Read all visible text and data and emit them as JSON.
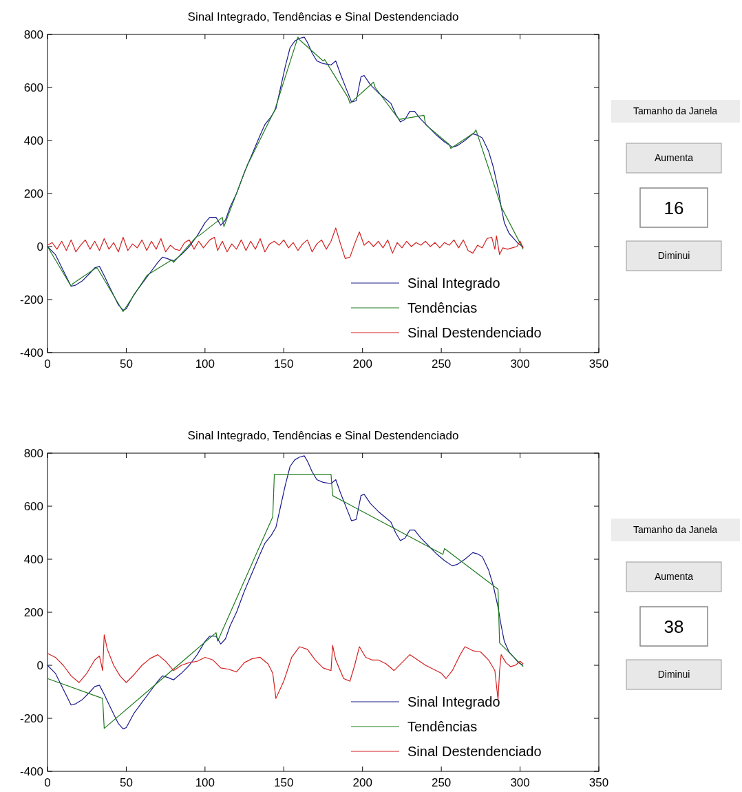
{
  "chart_data": [
    {
      "type": "line",
      "title": "Sinal Integrado, Tendências e Sinal Destendenciado",
      "xlim": [
        0,
        350
      ],
      "ylim": [
        -400,
        800
      ],
      "xticks": [
        0,
        50,
        100,
        150,
        200,
        250,
        300,
        350
      ],
      "yticks": [
        -400,
        -200,
        0,
        200,
        400,
        600,
        800
      ],
      "legend": "bottom right",
      "annotations": [
        "Tamanho da Janela",
        "Aumenta",
        "16",
        "Diminui"
      ],
      "series": [
        {
          "name": "Sinal Integrado",
          "color": "#1a1a8c",
          "x": [
            0,
            5,
            10,
            15,
            18,
            22,
            27,
            30,
            33,
            36,
            40,
            45,
            48,
            50,
            55,
            60,
            65,
            70,
            73,
            76,
            80,
            85,
            90,
            95,
            100,
            103,
            107,
            110,
            113,
            116,
            120,
            125,
            130,
            135,
            138,
            142,
            145,
            148,
            151,
            154,
            157,
            160,
            163,
            165,
            168,
            171,
            175,
            180,
            183,
            186,
            190,
            193,
            196,
            199,
            201,
            205,
            210,
            215,
            218,
            221,
            224,
            227,
            230,
            233,
            237,
            242,
            247,
            252,
            257,
            260,
            265,
            270,
            273,
            276,
            280,
            283,
            286,
            288,
            290,
            293,
            296,
            299,
            302
          ],
          "values": [
            0,
            -30,
            -90,
            -150,
            -145,
            -130,
            -100,
            -80,
            -75,
            -110,
            -160,
            -220,
            -240,
            -235,
            -180,
            -140,
            -100,
            -60,
            -40,
            -45,
            -55,
            -30,
            0,
            40,
            90,
            110,
            110,
            80,
            100,
            150,
            200,
            280,
            350,
            420,
            460,
            490,
            520,
            600,
            680,
            750,
            775,
            785,
            790,
            770,
            730,
            700,
            690,
            685,
            700,
            650,
            590,
            545,
            550,
            640,
            645,
            610,
            580,
            555,
            540,
            500,
            470,
            480,
            510,
            510,
            480,
            450,
            420,
            395,
            375,
            380,
            400,
            425,
            420,
            410,
            360,
            300,
            220,
            150,
            90,
            50,
            30,
            10,
            0
          ]
        },
        {
          "name": "Tendências",
          "color": "#1e7a1e",
          "x": [
            0,
            15,
            16,
            31,
            32,
            47,
            48,
            63,
            64,
            79,
            80,
            95,
            96,
            111,
            112,
            127,
            128,
            143,
            144,
            159,
            160,
            175,
            176,
            191,
            192,
            207,
            208,
            223,
            224,
            239,
            240,
            255,
            256,
            271,
            272,
            287,
            288,
            302
          ],
          "values": [
            0,
            -150,
            -140,
            -80,
            -85,
            -235,
            -245,
            -110,
            -105,
            -50,
            -60,
            40,
            40,
            110,
            75,
            310,
            320,
            500,
            510,
            790,
            780,
            700,
            705,
            560,
            540,
            620,
            600,
            480,
            480,
            495,
            460,
            385,
            370,
            430,
            440,
            170,
            150,
            -10
          ]
        },
        {
          "name": "Sinal Destendenciado",
          "color": "#d42020",
          "x": [
            0,
            3,
            6,
            9,
            12,
            15,
            18,
            21,
            24,
            27,
            30,
            33,
            36,
            39,
            42,
            45,
            48,
            51,
            54,
            57,
            60,
            63,
            66,
            69,
            72,
            75,
            78,
            81,
            84,
            87,
            90,
            93,
            96,
            99,
            103,
            106,
            108,
            111,
            114,
            117,
            120,
            123,
            126,
            129,
            132,
            135,
            138,
            141,
            144,
            147,
            150,
            153,
            156,
            159,
            162,
            165,
            168,
            171,
            174,
            177,
            180,
            183,
            186,
            189,
            192,
            195,
            198,
            201,
            204,
            207,
            210,
            213,
            216,
            219,
            222,
            225,
            228,
            231,
            234,
            237,
            240,
            243,
            246,
            249,
            252,
            255,
            258,
            261,
            264,
            267,
            270,
            273,
            276,
            279,
            282,
            284,
            285,
            287,
            289,
            292,
            295,
            298,
            300,
            302
          ],
          "values": [
            5,
            15,
            -10,
            20,
            -15,
            25,
            -20,
            5,
            25,
            -10,
            20,
            -15,
            30,
            -10,
            15,
            -20,
            35,
            -15,
            10,
            -5,
            25,
            -15,
            20,
            -10,
            30,
            -20,
            5,
            -10,
            -15,
            15,
            25,
            -10,
            20,
            -5,
            25,
            35,
            -15,
            20,
            -20,
            10,
            -10,
            25,
            -15,
            20,
            -10,
            30,
            -20,
            10,
            20,
            5,
            25,
            -5,
            15,
            -15,
            10,
            25,
            -20,
            10,
            25,
            -10,
            20,
            70,
            10,
            -45,
            -40,
            10,
            55,
            5,
            20,
            0,
            20,
            -5,
            25,
            -25,
            15,
            -5,
            20,
            0,
            15,
            5,
            20,
            0,
            15,
            -5,
            15,
            5,
            25,
            -5,
            25,
            -15,
            -25,
            5,
            -5,
            30,
            35,
            -10,
            40,
            -30,
            -5,
            -10,
            -5,
            0,
            20,
            -5
          ]
        }
      ]
    },
    {
      "type": "line",
      "title": "Sinal Integrado, Tendências e Sinal Destendenciado",
      "xlim": [
        0,
        350
      ],
      "ylim": [
        -400,
        800
      ],
      "xticks": [
        0,
        50,
        100,
        150,
        200,
        250,
        300,
        350
      ],
      "yticks": [
        -400,
        -200,
        0,
        200,
        400,
        600,
        800
      ],
      "legend": "bottom right",
      "annotations": [
        "Tamanho da Janela",
        "Aumenta",
        "38",
        "Diminui"
      ],
      "series": [
        {
          "name": "Sinal Integrado",
          "color": "#1a1a8c",
          "x": [
            0,
            5,
            10,
            15,
            18,
            22,
            27,
            30,
            33,
            36,
            40,
            45,
            48,
            50,
            55,
            60,
            65,
            70,
            73,
            76,
            80,
            85,
            90,
            95,
            100,
            103,
            107,
            110,
            113,
            116,
            120,
            125,
            130,
            135,
            138,
            142,
            145,
            148,
            151,
            154,
            157,
            160,
            163,
            165,
            168,
            171,
            175,
            180,
            183,
            186,
            190,
            193,
            196,
            199,
            201,
            205,
            210,
            215,
            218,
            221,
            224,
            227,
            230,
            233,
            237,
            242,
            247,
            252,
            257,
            260,
            265,
            270,
            273,
            276,
            280,
            283,
            286,
            288,
            290,
            293,
            296,
            299,
            302
          ],
          "values": [
            0,
            -30,
            -90,
            -150,
            -145,
            -130,
            -100,
            -80,
            -75,
            -110,
            -160,
            -220,
            -240,
            -235,
            -180,
            -140,
            -100,
            -60,
            -40,
            -45,
            -55,
            -30,
            0,
            40,
            90,
            110,
            110,
            80,
            100,
            150,
            200,
            280,
            350,
            420,
            460,
            490,
            520,
            600,
            680,
            750,
            775,
            785,
            790,
            770,
            730,
            700,
            690,
            685,
            700,
            650,
            590,
            545,
            550,
            640,
            645,
            610,
            580,
            555,
            540,
            500,
            470,
            480,
            510,
            510,
            480,
            450,
            420,
            395,
            375,
            380,
            400,
            425,
            420,
            410,
            360,
            300,
            220,
            150,
            90,
            50,
            30,
            10,
            0
          ]
        },
        {
          "name": "Tendências",
          "color": "#1e7a1e",
          "x": [
            0,
            35,
            36,
            107,
            108,
            143,
            144,
            180,
            181,
            251,
            252,
            286,
            287,
            302
          ],
          "values": [
            -50,
            -125,
            -238,
            123,
            91,
            560,
            720,
            720,
            640,
            418,
            440,
            287,
            84,
            -5
          ]
        },
        {
          "name": "Sinal Destendenciado",
          "color": "#d42020",
          "x": [
            0,
            5,
            10,
            15,
            20,
            25,
            30,
            33,
            35,
            36,
            38,
            42,
            46,
            50,
            55,
            60,
            65,
            70,
            75,
            80,
            85,
            90,
            95,
            100,
            105,
            110,
            115,
            120,
            125,
            130,
            135,
            140,
            143,
            145,
            150,
            155,
            160,
            165,
            170,
            175,
            180,
            181,
            183,
            188,
            192,
            195,
            198,
            202,
            206,
            210,
            215,
            220,
            225,
            230,
            235,
            240,
            245,
            250,
            253,
            257,
            262,
            265,
            270,
            275,
            280,
            284,
            286,
            287,
            288,
            291,
            294,
            297,
            300,
            302
          ],
          "values": [
            45,
            30,
            0,
            -40,
            -65,
            -30,
            20,
            35,
            -20,
            115,
            60,
            0,
            -40,
            -65,
            -35,
            0,
            25,
            40,
            15,
            -20,
            0,
            10,
            15,
            30,
            20,
            -10,
            -15,
            -25,
            10,
            25,
            30,
            5,
            -30,
            -125,
            -60,
            30,
            70,
            60,
            20,
            -10,
            -20,
            75,
            20,
            -50,
            -60,
            0,
            70,
            30,
            20,
            20,
            5,
            -20,
            10,
            40,
            20,
            0,
            -15,
            -30,
            -50,
            -20,
            40,
            70,
            55,
            50,
            20,
            -20,
            -130,
            -20,
            40,
            10,
            -5,
            0,
            15,
            5
          ]
        }
      ]
    }
  ]
}
